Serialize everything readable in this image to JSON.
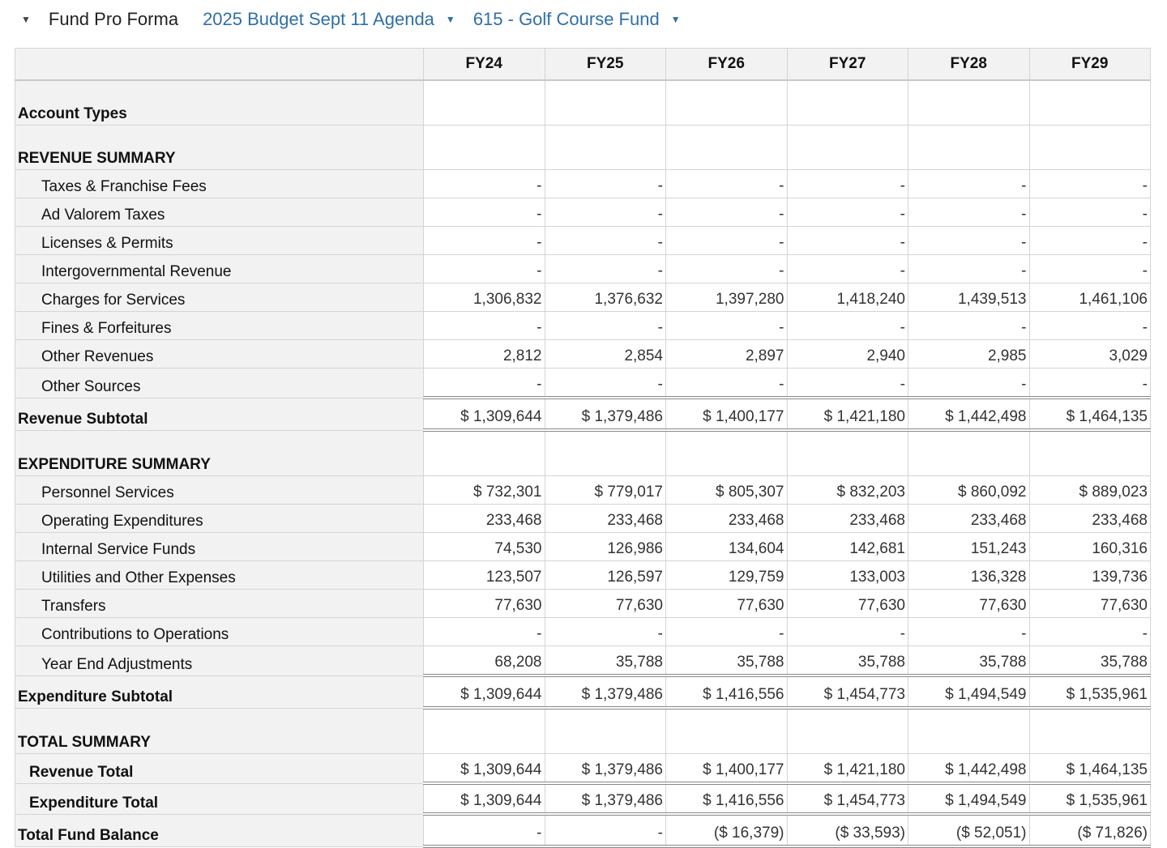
{
  "header": {
    "title": "Fund Pro Forma",
    "budget_selector": "2025 Budget Sept 11 Agenda",
    "fund_selector": "615 - Golf Course Fund"
  },
  "table": {
    "columns": [
      "FY24",
      "FY25",
      "FY26",
      "FY27",
      "FY28",
      "FY29"
    ],
    "rows": [
      {
        "type": "sect",
        "label": "Account Types",
        "values": [
          "",
          "",
          "",
          "",
          "",
          ""
        ]
      },
      {
        "type": "sect",
        "label": "REVENUE SUMMARY",
        "values": [
          "",
          "",
          "",
          "",
          "",
          ""
        ]
      },
      {
        "type": "item",
        "label": "Taxes & Franchise Fees",
        "values": [
          "-",
          "-",
          "-",
          "-",
          "-",
          "-"
        ]
      },
      {
        "type": "item",
        "label": "Ad Valorem Taxes",
        "values": [
          "-",
          "-",
          "-",
          "-",
          "-",
          "-"
        ]
      },
      {
        "type": "item",
        "label": "Licenses & Permits",
        "values": [
          "-",
          "-",
          "-",
          "-",
          "-",
          "-"
        ]
      },
      {
        "type": "item",
        "label": "Intergovernmental Revenue",
        "values": [
          "-",
          "-",
          "-",
          "-",
          "-",
          "-"
        ]
      },
      {
        "type": "item",
        "label": "Charges for Services",
        "values": [
          "1,306,832",
          "1,376,632",
          "1,397,280",
          "1,418,240",
          "1,439,513",
          "1,461,106"
        ]
      },
      {
        "type": "item",
        "label": "Fines & Forfeitures",
        "values": [
          "-",
          "-",
          "-",
          "-",
          "-",
          "-"
        ]
      },
      {
        "type": "item",
        "label": "Other Revenues",
        "values": [
          "2,812",
          "2,854",
          "2,897",
          "2,940",
          "2,985",
          "3,029"
        ]
      },
      {
        "type": "item",
        "label": "Other Sources",
        "values": [
          "-",
          "-",
          "-",
          "-",
          "-",
          "-"
        ]
      },
      {
        "type": "sub",
        "label": "Revenue Subtotal",
        "values": [
          "$ 1,309,644",
          "$ 1,379,486",
          "$ 1,400,177",
          "$ 1,421,180",
          "$ 1,442,498",
          "$ 1,464,135"
        ]
      },
      {
        "type": "sect",
        "label": "EXPENDITURE SUMMARY",
        "values": [
          "",
          "",
          "",
          "",
          "",
          ""
        ]
      },
      {
        "type": "item",
        "label": "Personnel Services",
        "values": [
          "$ 732,301",
          "$ 779,017",
          "$ 805,307",
          "$ 832,203",
          "$ 860,092",
          "$ 889,023"
        ]
      },
      {
        "type": "item",
        "label": "Operating Expenditures",
        "values": [
          "233,468",
          "233,468",
          "233,468",
          "233,468",
          "233,468",
          "233,468"
        ]
      },
      {
        "type": "item",
        "label": "Internal Service Funds",
        "values": [
          "74,530",
          "126,986",
          "134,604",
          "142,681",
          "151,243",
          "160,316"
        ]
      },
      {
        "type": "item",
        "label": "Utilities and Other Expenses",
        "values": [
          "123,507",
          "126,597",
          "129,759",
          "133,003",
          "136,328",
          "139,736"
        ]
      },
      {
        "type": "item",
        "label": "Transfers",
        "values": [
          "77,630",
          "77,630",
          "77,630",
          "77,630",
          "77,630",
          "77,630"
        ]
      },
      {
        "type": "item",
        "label": "Contributions to Operations",
        "values": [
          "-",
          "-",
          "-",
          "-",
          "-",
          "-"
        ]
      },
      {
        "type": "item",
        "label": "Year End Adjustments",
        "values": [
          "68,208",
          "35,788",
          "35,788",
          "35,788",
          "35,788",
          "35,788"
        ]
      },
      {
        "type": "sub",
        "label": "Expenditure Subtotal",
        "values": [
          "$ 1,309,644",
          "$ 1,379,486",
          "$ 1,416,556",
          "$ 1,454,773",
          "$ 1,494,549",
          "$ 1,535,961"
        ]
      },
      {
        "type": "sect",
        "label": "TOTAL SUMMARY",
        "values": [
          "",
          "",
          "",
          "",
          "",
          ""
        ]
      },
      {
        "type": "tot",
        "label": "Revenue Total",
        "values": [
          "$ 1,309,644",
          "$ 1,379,486",
          "$ 1,400,177",
          "$ 1,421,180",
          "$ 1,442,498",
          "$ 1,464,135"
        ]
      },
      {
        "type": "tot ptop",
        "label": "Expenditure Total",
        "values": [
          "$ 1,309,644",
          "$ 1,379,486",
          "$ 1,416,556",
          "$ 1,454,773",
          "$ 1,494,549",
          "$ 1,535,961"
        ]
      },
      {
        "type": "bal",
        "label": "Total Fund Balance",
        "values": [
          "-",
          "-",
          "($ 16,379)",
          "($ 33,593)",
          "($ 52,051)",
          "($ 71,826)"
        ]
      }
    ]
  }
}
